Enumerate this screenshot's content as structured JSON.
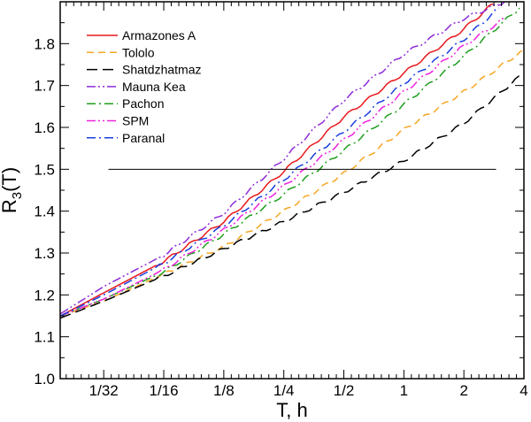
{
  "chart_data": {
    "type": "line",
    "xlabel": "T, h",
    "ylabel_main": "R",
    "ylabel_sub": "3",
    "ylabel_tail": "(T)",
    "x_scale": "log2",
    "xlim": [
      0.0189,
      4.0
    ],
    "ylim": [
      1.0,
      1.9
    ],
    "x_ticks": [
      {
        "value": 0.03125,
        "label": "1/32"
      },
      {
        "value": 0.0625,
        "label": "1/16"
      },
      {
        "value": 0.125,
        "label": "1/8"
      },
      {
        "value": 0.25,
        "label": "1/4"
      },
      {
        "value": 0.5,
        "label": "1/2"
      },
      {
        "value": 1,
        "label": "1"
      },
      {
        "value": 2,
        "label": "2"
      },
      {
        "value": 4,
        "label": "4"
      }
    ],
    "y_ticks": [
      {
        "value": 1.0,
        "label": "1.0"
      },
      {
        "value": 1.1,
        "label": "1.1"
      },
      {
        "value": 1.2,
        "label": "1.2"
      },
      {
        "value": 1.3,
        "label": "1.3"
      },
      {
        "value": 1.4,
        "label": "1.4"
      },
      {
        "value": 1.5,
        "label": "1.5"
      },
      {
        "value": 1.6,
        "label": "1.6"
      },
      {
        "value": 1.7,
        "label": "1.7"
      },
      {
        "value": 1.8,
        "label": "1.8"
      }
    ],
    "reference_line": {
      "y": 1.5,
      "x_start": 0.033,
      "x_end": 2.9
    },
    "legend_position": "top-left",
    "series": [
      {
        "name": "Armazones A",
        "color": "#e8191c",
        "dash": "solid",
        "x": [
          0.019,
          0.03125,
          0.0625,
          0.125,
          0.25,
          0.5,
          1,
          2,
          2.8
        ],
        "y": [
          1.15,
          1.205,
          1.28,
          1.375,
          1.495,
          1.625,
          1.73,
          1.835,
          1.895
        ]
      },
      {
        "name": "Tololo",
        "color": "#f5a623",
        "dash": "dash",
        "x": [
          0.019,
          0.03125,
          0.0625,
          0.125,
          0.25,
          0.5,
          1,
          2,
          4
        ],
        "y": [
          1.15,
          1.185,
          1.25,
          1.315,
          1.4,
          1.49,
          1.595,
          1.685,
          1.785
        ]
      },
      {
        "name": "Shatdzhatmaz",
        "color": "#000000",
        "dash": "longdash",
        "x": [
          0.019,
          0.03125,
          0.0625,
          0.125,
          0.25,
          0.5,
          1,
          2,
          4
        ],
        "y": [
          1.145,
          1.185,
          1.245,
          1.31,
          1.375,
          1.445,
          1.52,
          1.61,
          1.73
        ]
      },
      {
        "name": "Mauna Kea",
        "color": "#8e2bd9",
        "dash": "dashdotdot",
        "x": [
          0.019,
          0.03125,
          0.0625,
          0.125,
          0.25,
          0.5,
          1,
          2,
          3.2
        ],
        "y": [
          1.155,
          1.22,
          1.295,
          1.395,
          1.525,
          1.665,
          1.775,
          1.86,
          1.9
        ]
      },
      {
        "name": "Pachon",
        "color": "#1d9e1d",
        "dash": "dashdot",
        "x": [
          0.019,
          0.03125,
          0.0625,
          0.125,
          0.25,
          0.5,
          1,
          2,
          3.8
        ],
        "y": [
          1.15,
          1.19,
          1.255,
          1.345,
          1.44,
          1.545,
          1.655,
          1.77,
          1.885
        ]
      },
      {
        "name": "SPM",
        "color": "#ee22dd",
        "dash": "dashdotdot",
        "x": [
          0.019,
          0.03125,
          0.0625,
          0.125,
          0.25,
          0.5,
          1,
          2,
          3.2
        ],
        "y": [
          1.15,
          1.19,
          1.26,
          1.355,
          1.46,
          1.57,
          1.685,
          1.795,
          1.86
        ]
      },
      {
        "name": "Paranal",
        "color": "#1a3ee0",
        "dash": "dashdot",
        "x": [
          0.019,
          0.03125,
          0.0625,
          0.125,
          0.25,
          0.5,
          1,
          2,
          3.0
        ],
        "y": [
          1.15,
          1.2,
          1.275,
          1.365,
          1.475,
          1.59,
          1.705,
          1.81,
          1.885
        ]
      }
    ]
  }
}
